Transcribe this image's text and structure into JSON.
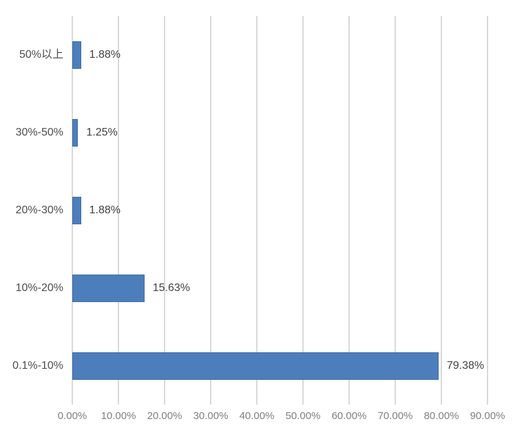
{
  "chart_data": {
    "type": "bar",
    "orientation": "horizontal",
    "title": "",
    "categories": [
      "50%以上",
      "30%-50%",
      "20%-30%",
      "10%-20%",
      "0.1%-10%"
    ],
    "values": [
      1.88,
      1.25,
      1.88,
      15.63,
      79.38
    ],
    "value_labels": [
      "1.88%",
      "1.25%",
      "1.88%",
      "15.63%",
      "79.38%"
    ],
    "x_tick_values": [
      0,
      10,
      20,
      30,
      40,
      50,
      60,
      70,
      80,
      90
    ],
    "x_tick_labels": [
      "0.00%",
      "10.00%",
      "20.00%",
      "30.00%",
      "40.00%",
      "50.00%",
      "60.00%",
      "70.00%",
      "80.00%",
      "90.00%"
    ],
    "xlim": [
      0,
      90
    ],
    "grid": true,
    "legend": false,
    "xlabel": "",
    "ylabel": "",
    "colors": {
      "bar_fill": "#4d7ebc",
      "bar_border": "#3e6ba3",
      "gridline": "#d9d9d9",
      "category_label": "#4d4d4d",
      "value_label": "#404040",
      "tick_label": "#7f7f7f",
      "background": "#ffffff"
    }
  }
}
